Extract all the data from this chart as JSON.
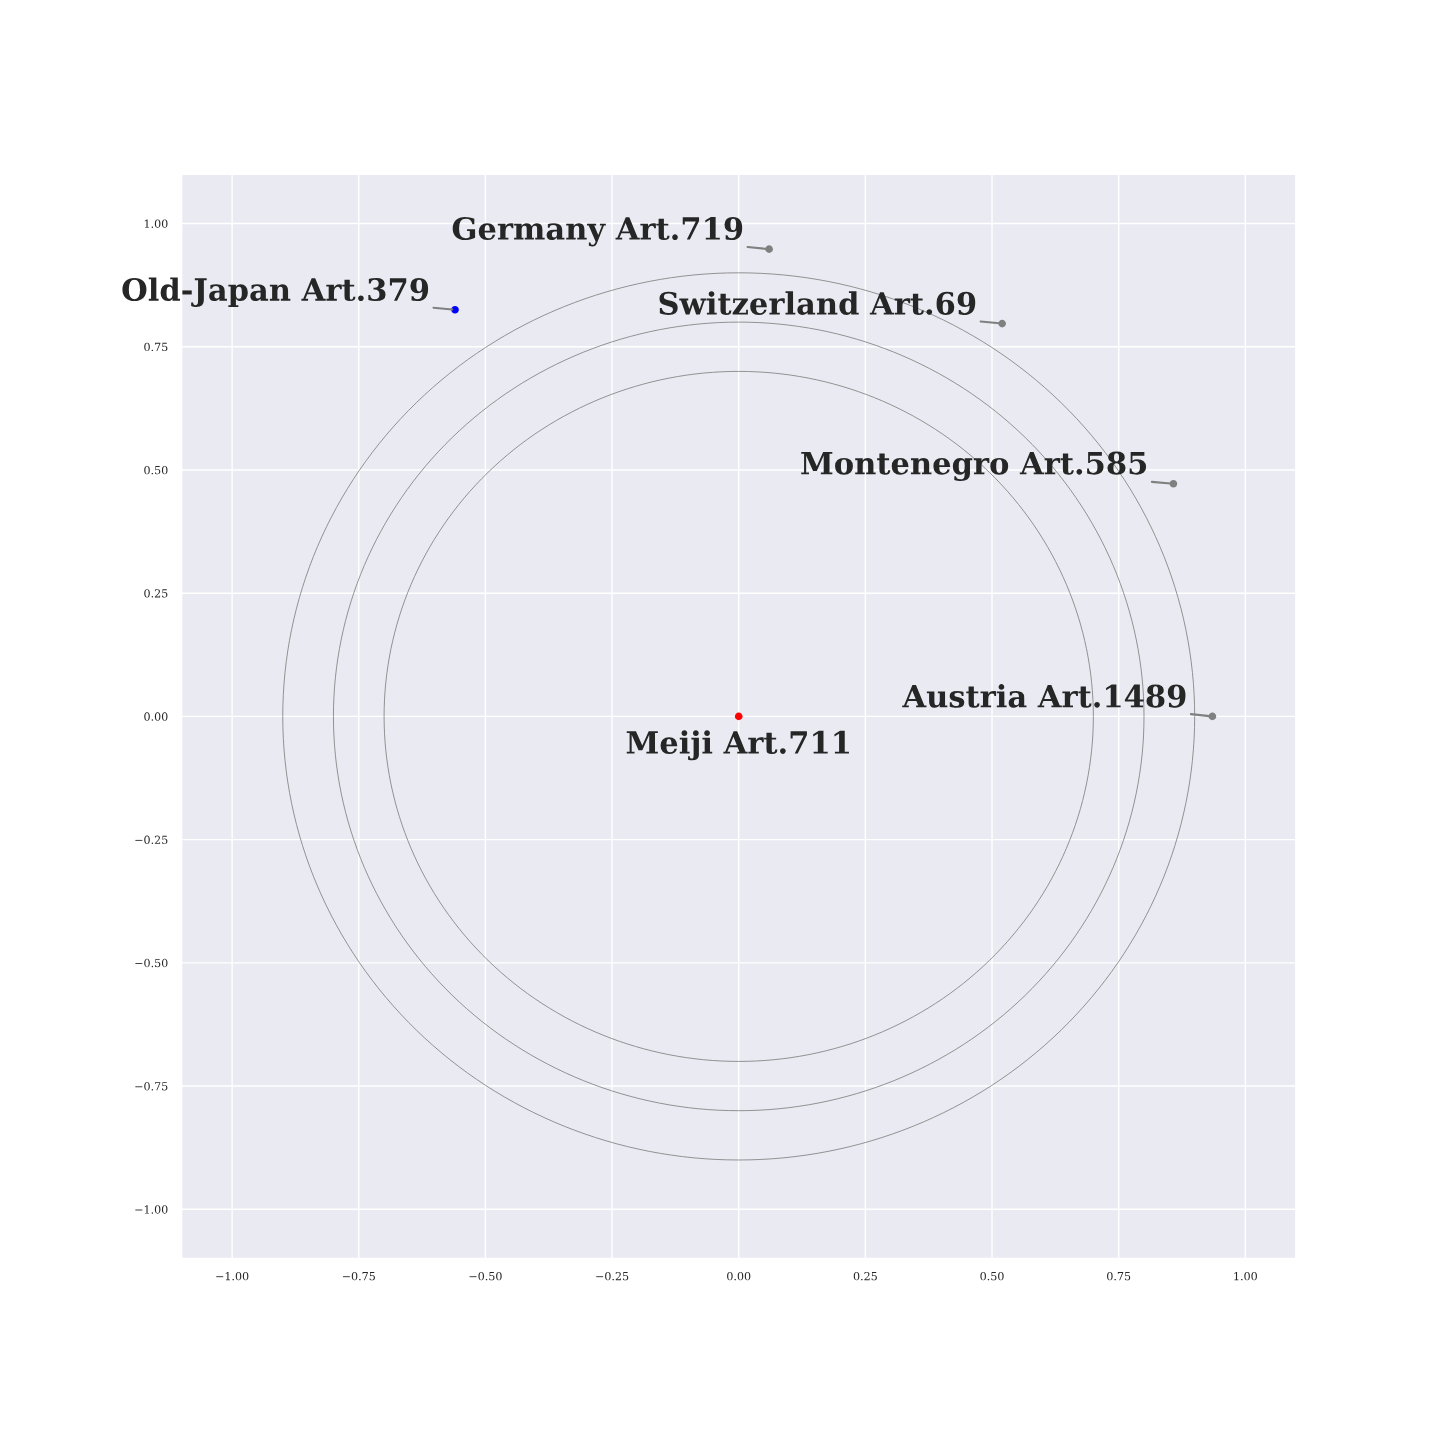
{
  "chart_data": {
    "type": "scatter",
    "xlim": [
      -1.1,
      1.1
    ],
    "ylim": [
      -1.1,
      1.1
    ],
    "xticks": [
      {
        "value": -1,
        "label": "−1.00"
      },
      {
        "value": -0.75,
        "label": "−0.75"
      },
      {
        "value": -0.5,
        "label": "−0.50"
      },
      {
        "value": -0.25,
        "label": "−0.25"
      },
      {
        "value": 0,
        "label": "0.00"
      },
      {
        "value": 0.25,
        "label": "0.25"
      },
      {
        "value": 0.5,
        "label": "0.50"
      },
      {
        "value": 0.75,
        "label": "0.75"
      },
      {
        "value": 1,
        "label": "1.00"
      }
    ],
    "yticks": [
      {
        "value": -1,
        "label": "−1.00"
      },
      {
        "value": -0.75,
        "label": "−0.75"
      },
      {
        "value": -0.5,
        "label": "−0.50"
      },
      {
        "value": -0.25,
        "label": "−0.25"
      },
      {
        "value": 0,
        "label": "0.00"
      },
      {
        "value": 0.25,
        "label": "0.25"
      },
      {
        "value": 0.5,
        "label": "0.50"
      },
      {
        "value": 0.75,
        "label": "0.75"
      },
      {
        "value": 1,
        "label": "1.00"
      }
    ],
    "grid": true,
    "series": [
      {
        "type": "scatter",
        "x": [
          -0.56,
          0.06,
          0.52,
          0.858,
          0.935,
          0.0
        ],
        "values": [
          0.825,
          0.948,
          0.797,
          0.472,
          0.0,
          0.0
        ],
        "colors": [
          "#0000ff",
          "#808080",
          "#808080",
          "#808080",
          "#808080",
          "#ff0000"
        ]
      }
    ],
    "annotations": [
      {
        "text": "Old-Japan Art.379",
        "x": -0.56,
        "y": 0.825
      },
      {
        "text": "Germany Art.719",
        "x": 0.06,
        "y": 0.948
      },
      {
        "text": "Switzerland Art.69",
        "x": 0.52,
        "y": 0.797
      },
      {
        "text": "Montenegro Art.585",
        "x": 0.858,
        "y": 0.472
      },
      {
        "text": "Austria Art.1489",
        "x": 0.935,
        "y": 0.0
      },
      {
        "text": "Meiji Art.711",
        "x": 0.0,
        "y": 0.0
      }
    ]
  }
}
